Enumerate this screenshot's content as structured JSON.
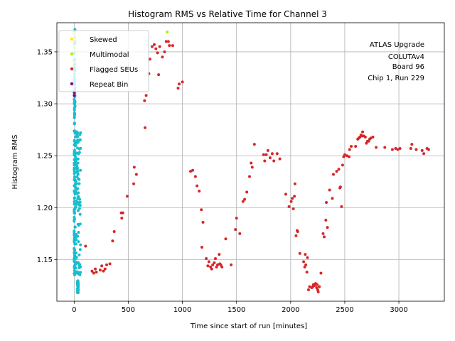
{
  "chart_data": {
    "type": "scatter",
    "title": "Histogram RMS vs Relative Time for Channel 3",
    "xlabel": "Time since start of run [minutes]",
    "ylabel": "Histogram RMS",
    "xlim": [
      -160,
      3420
    ],
    "ylim": [
      1.11,
      1.378
    ],
    "xticks": [
      0,
      500,
      1000,
      1500,
      2000,
      2500,
      3000
    ],
    "xtick_labels": [
      "0",
      "500",
      "1000",
      "1500",
      "2000",
      "2500",
      "3000"
    ],
    "yticks": [
      1.15,
      1.2,
      1.25,
      1.3,
      1.35
    ],
    "ytick_labels": [
      "1.15",
      "1.20",
      "1.25",
      "1.30",
      "1.35"
    ],
    "grid": true,
    "legend_placement": "upper-left",
    "annotation_lines": [
      "ATLAS Upgrade",
      "COLUTAv4",
      "Board 96",
      "Chip 1, Run 229"
    ],
    "series": [
      {
        "name": "Skewed",
        "color": "#ffee00",
        "points": [
          [
            0,
            1.368
          ],
          [
            0,
            1.362
          ]
        ]
      },
      {
        "name": "Multimodal",
        "color": "#a6f20f",
        "points": [
          [
            0,
            1.354
          ],
          [
            860,
            1.369
          ]
        ]
      },
      {
        "name": "Flagged SEUs",
        "color": "#d62728",
        "points": [
          [
            105,
            1.163
          ],
          [
            165,
            1.139
          ],
          [
            180,
            1.137
          ],
          [
            195,
            1.141
          ],
          [
            205,
            1.138
          ],
          [
            240,
            1.14
          ],
          [
            255,
            1.144
          ],
          [
            270,
            1.139
          ],
          [
            285,
            1.141
          ],
          [
            300,
            1.145
          ],
          [
            330,
            1.146
          ],
          [
            355,
            1.168
          ],
          [
            370,
            1.177
          ],
          [
            435,
            1.195
          ],
          [
            440,
            1.19
          ],
          [
            450,
            1.195
          ],
          [
            490,
            1.211
          ],
          [
            550,
            1.223
          ],
          [
            555,
            1.239
          ],
          [
            575,
            1.232
          ],
          [
            650,
            1.303
          ],
          [
            655,
            1.277
          ],
          [
            665,
            1.308
          ],
          [
            690,
            1.329
          ],
          [
            700,
            1.343
          ],
          [
            720,
            1.355
          ],
          [
            740,
            1.357
          ],
          [
            755,
            1.353
          ],
          [
            770,
            1.349
          ],
          [
            780,
            1.328
          ],
          [
            790,
            1.355
          ],
          [
            815,
            1.345
          ],
          [
            835,
            1.35
          ],
          [
            850,
            1.36
          ],
          [
            870,
            1.36
          ],
          [
            880,
            1.356
          ],
          [
            910,
            1.356
          ],
          [
            960,
            1.315
          ],
          [
            970,
            1.319
          ],
          [
            1000,
            1.321
          ],
          [
            1075,
            1.235
          ],
          [
            1095,
            1.236
          ],
          [
            1120,
            1.23
          ],
          [
            1135,
            1.221
          ],
          [
            1155,
            1.216
          ],
          [
            1175,
            1.198
          ],
          [
            1180,
            1.162
          ],
          [
            1190,
            1.186
          ],
          [
            1220,
            1.151
          ],
          [
            1235,
            1.144
          ],
          [
            1245,
            1.148
          ],
          [
            1260,
            1.143
          ],
          [
            1270,
            1.141
          ],
          [
            1280,
            1.145
          ],
          [
            1295,
            1.147
          ],
          [
            1305,
            1.151
          ],
          [
            1315,
            1.143
          ],
          [
            1325,
            1.145
          ],
          [
            1340,
            1.155
          ],
          [
            1345,
            1.146
          ],
          [
            1355,
            1.145
          ],
          [
            1365,
            1.143
          ],
          [
            1400,
            1.17
          ],
          [
            1450,
            1.145
          ],
          [
            1490,
            1.179
          ],
          [
            1500,
            1.19
          ],
          [
            1530,
            1.175
          ],
          [
            1560,
            1.206
          ],
          [
            1575,
            1.208
          ],
          [
            1595,
            1.215
          ],
          [
            1620,
            1.23
          ],
          [
            1635,
            1.243
          ],
          [
            1645,
            1.239
          ],
          [
            1665,
            1.261
          ],
          [
            1750,
            1.251
          ],
          [
            1760,
            1.245
          ],
          [
            1775,
            1.251
          ],
          [
            1790,
            1.255
          ],
          [
            1810,
            1.248
          ],
          [
            1830,
            1.252
          ],
          [
            1845,
            1.245
          ],
          [
            1875,
            1.252
          ],
          [
            1900,
            1.247
          ],
          [
            1955,
            1.213
          ],
          [
            1985,
            1.201
          ],
          [
            2005,
            1.206
          ],
          [
            2015,
            1.209
          ],
          [
            2025,
            1.199
          ],
          [
            2035,
            1.211
          ],
          [
            2040,
            1.223
          ],
          [
            2050,
            1.173
          ],
          [
            2060,
            1.178
          ],
          [
            2065,
            1.177
          ],
          [
            2085,
            1.156
          ],
          [
            2120,
            1.148
          ],
          [
            2130,
            1.143
          ],
          [
            2135,
            1.155
          ],
          [
            2140,
            1.145
          ],
          [
            2150,
            1.138
          ],
          [
            2155,
            1.152
          ],
          [
            2165,
            1.121
          ],
          [
            2175,
            1.124
          ],
          [
            2195,
            1.123
          ],
          [
            2205,
            1.124
          ],
          [
            2210,
            1.126
          ],
          [
            2220,
            1.125
          ],
          [
            2230,
            1.127
          ],
          [
            2240,
            1.123
          ],
          [
            2245,
            1.126
          ],
          [
            2250,
            1.121
          ],
          [
            2255,
            1.119
          ],
          [
            2265,
            1.124
          ],
          [
            2280,
            1.137
          ],
          [
            2300,
            1.175
          ],
          [
            2310,
            1.172
          ],
          [
            2325,
            1.188
          ],
          [
            2330,
            1.205
          ],
          [
            2340,
            1.181
          ],
          [
            2360,
            1.217
          ],
          [
            2385,
            1.209
          ],
          [
            2395,
            1.232
          ],
          [
            2425,
            1.235
          ],
          [
            2445,
            1.237
          ],
          [
            2455,
            1.219
          ],
          [
            2460,
            1.22
          ],
          [
            2470,
            1.201
          ],
          [
            2480,
            1.241
          ],
          [
            2490,
            1.249
          ],
          [
            2500,
            1.251
          ],
          [
            2520,
            1.25
          ],
          [
            2540,
            1.249
          ],
          [
            2545,
            1.256
          ],
          [
            2560,
            1.259
          ],
          [
            2600,
            1.259
          ],
          [
            2620,
            1.266
          ],
          [
            2630,
            1.267
          ],
          [
            2640,
            1.268
          ],
          [
            2650,
            1.27
          ],
          [
            2660,
            1.269
          ],
          [
            2665,
            1.273
          ],
          [
            2675,
            1.269
          ],
          [
            2690,
            1.268
          ],
          [
            2700,
            1.262
          ],
          [
            2710,
            1.264
          ],
          [
            2720,
            1.264
          ],
          [
            2730,
            1.266
          ],
          [
            2740,
            1.267
          ],
          [
            2760,
            1.268
          ],
          [
            2790,
            1.258
          ],
          [
            2870,
            1.258
          ],
          [
            2940,
            1.256
          ],
          [
            2970,
            1.257
          ],
          [
            2990,
            1.256
          ],
          [
            3010,
            1.257
          ],
          [
            3110,
            1.257
          ],
          [
            3120,
            1.261
          ],
          [
            3160,
            1.256
          ],
          [
            3215,
            1.255
          ],
          [
            3230,
            1.252
          ],
          [
            3260,
            1.257
          ],
          [
            3275,
            1.256
          ]
        ]
      },
      {
        "name": "Repeat Bin",
        "color": "#800080",
        "points": [
          [
            0,
            1.308
          ],
          [
            0,
            1.311
          ]
        ]
      }
    ],
    "unflagged": {
      "color": "#17becf",
      "x_range": [
        0,
        60
      ],
      "y_range": [
        1.118,
        1.372
      ],
      "count": 320
    }
  }
}
